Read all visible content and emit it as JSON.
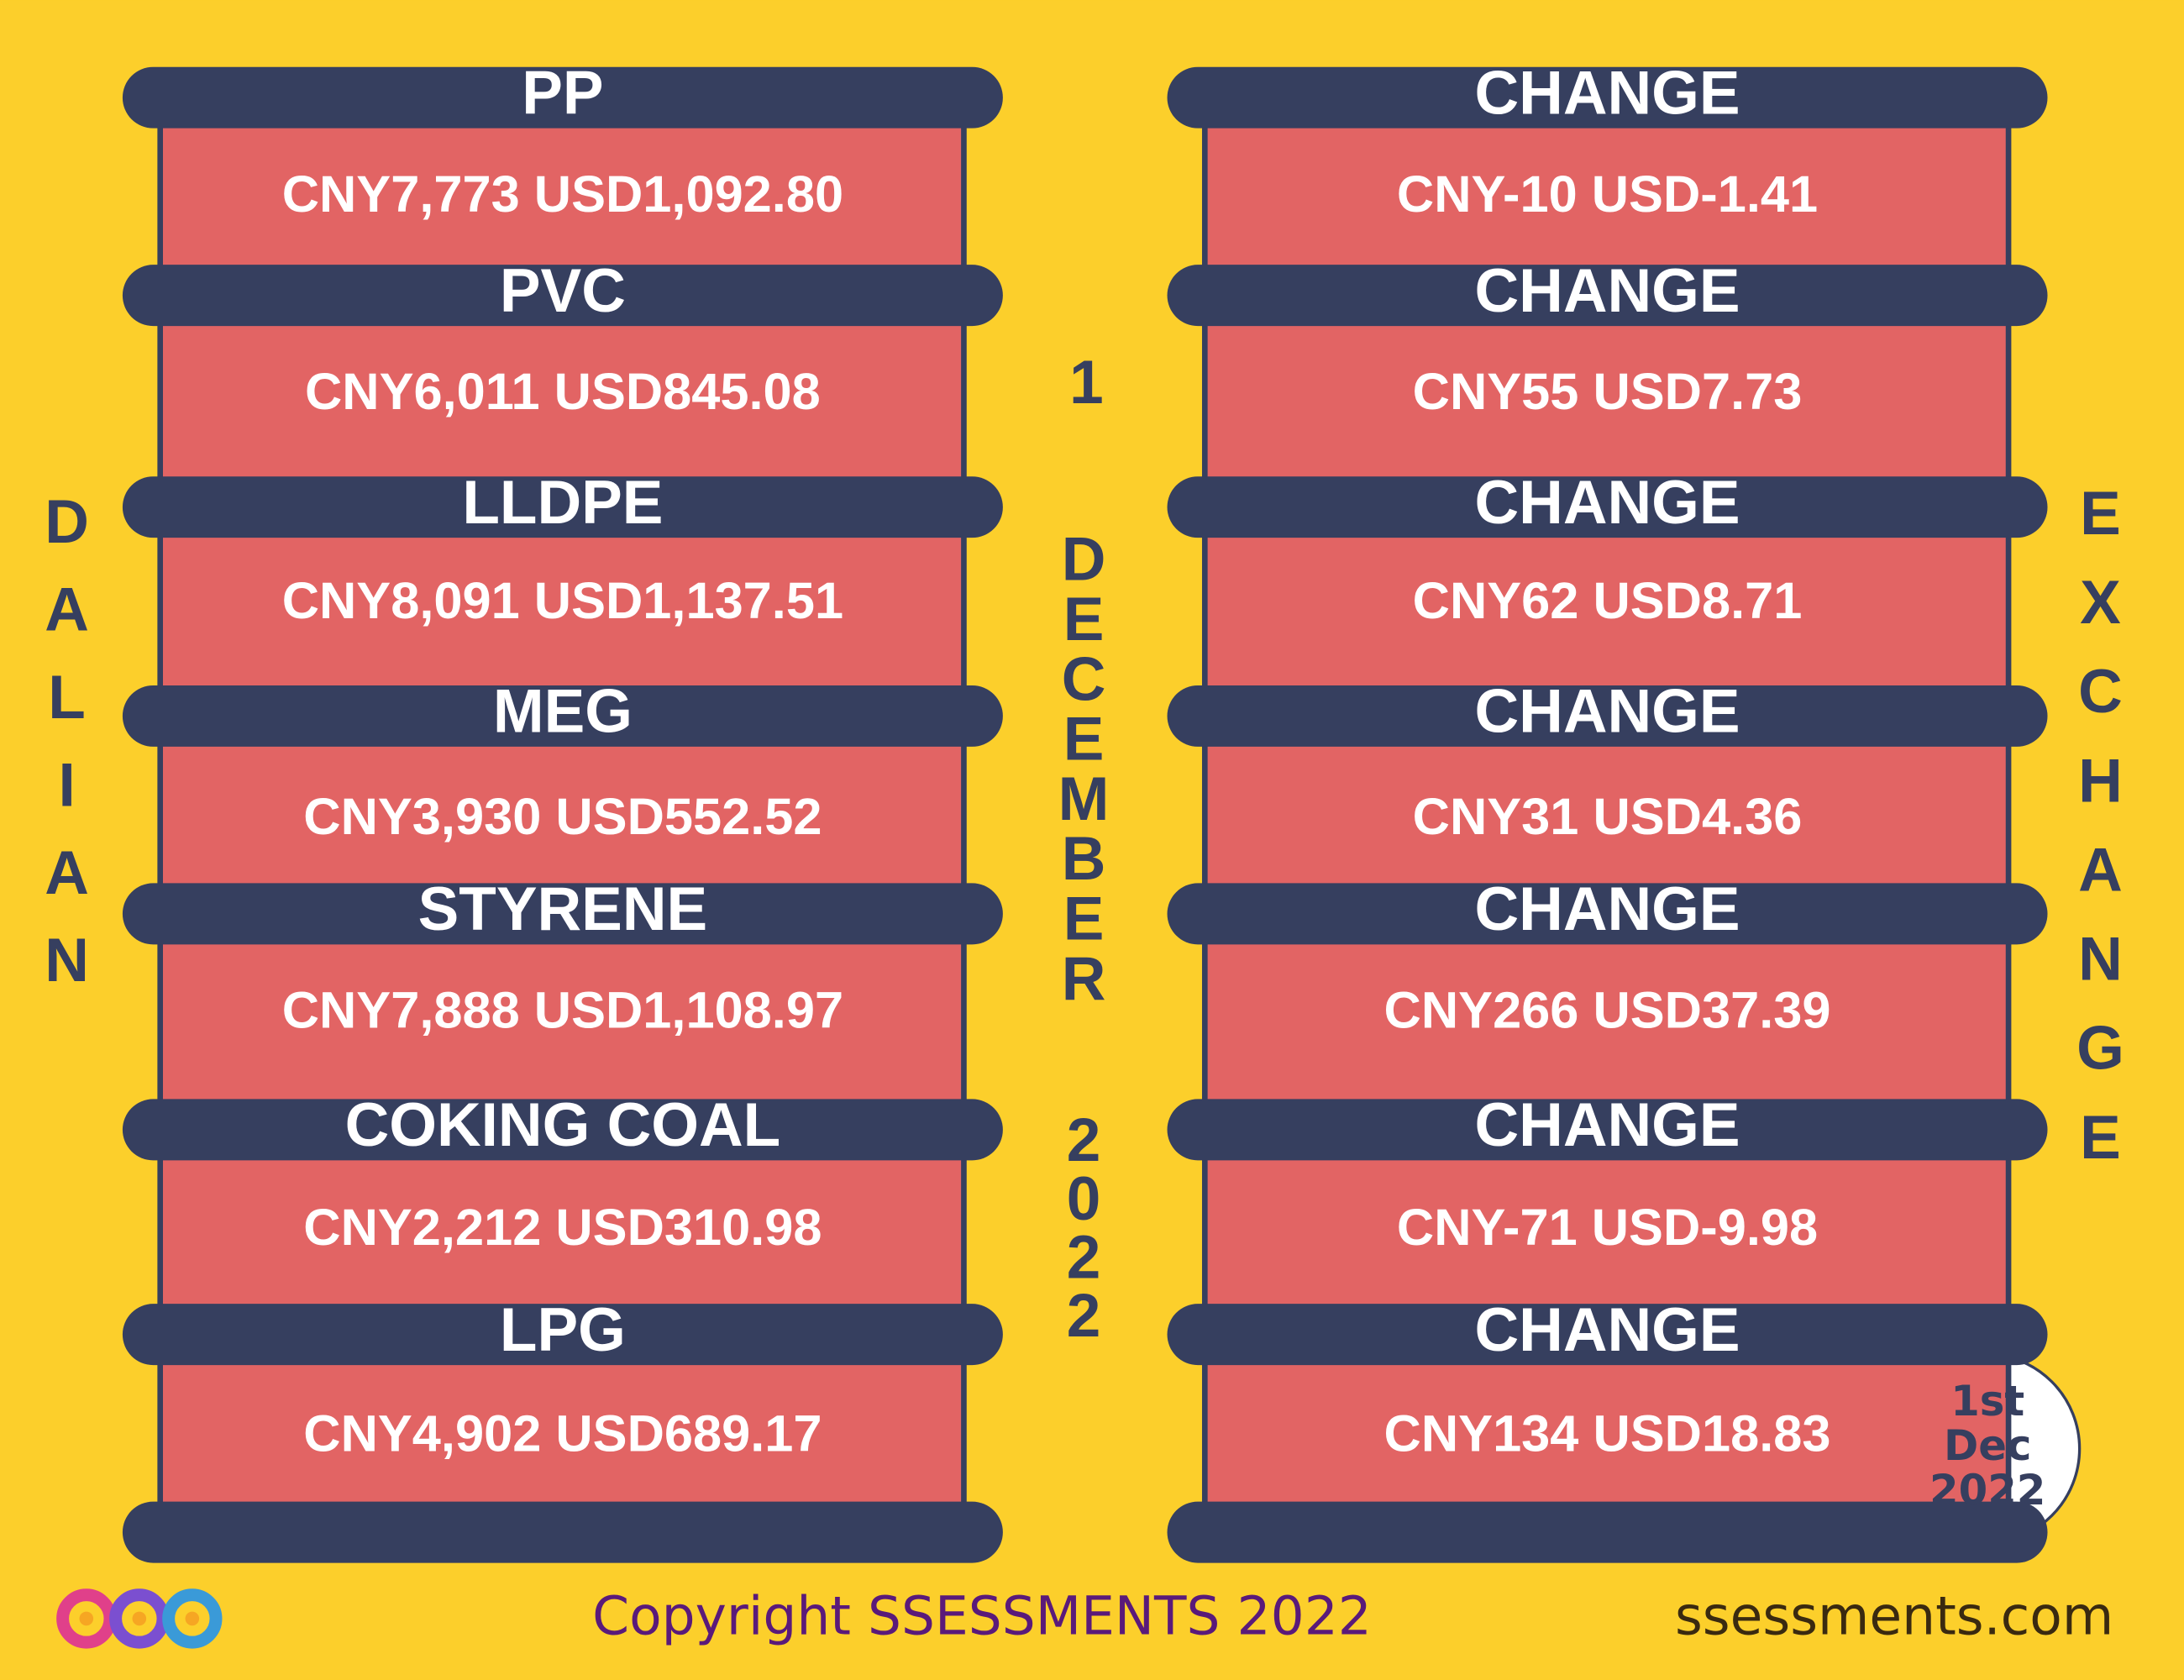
{
  "left_column": {
    "items": [
      {
        "name": "PP",
        "value": "CNY7,773 USD1,092.80"
      },
      {
        "name": "PVC",
        "value": "CNY6,011 USD845.08"
      },
      {
        "name": "LLDPE",
        "value": "CNY8,091 USD1,137.51"
      },
      {
        "name": "MEG",
        "value": "CNY3,930 USD552.52"
      },
      {
        "name": "STYRENE",
        "value": "CNY7,888 USD1,108.97"
      },
      {
        "name": "COKING COAL",
        "value": "CNY2,212 USD310.98"
      },
      {
        "name": "LPG",
        "value": "CNY4,902 USD689.17"
      }
    ]
  },
  "right_column": {
    "items": [
      {
        "label": "CHANGE",
        "value": "CNY-10 USD-1.41"
      },
      {
        "label": "CHANGE",
        "value": "CNY55 USD7.73"
      },
      {
        "label": "CHANGE",
        "value": "CNY62 USD8.71"
      },
      {
        "label": "CHANGE",
        "value": "CNY31 USD4.36"
      },
      {
        "label": "CHANGE",
        "value": "CNY266 USD37.39"
      },
      {
        "label": "CHANGE",
        "value": "CNY-71 USD-9.98"
      },
      {
        "label": "CHANGE",
        "value": "CNY134 USD18.83"
      }
    ]
  },
  "side_labels": {
    "left": "DALIAN",
    "center_top": "1",
    "center_middle": "DECEMBER",
    "center_bottom": "2022",
    "right": "EXCHANGE"
  },
  "badge": {
    "lines": [
      "1st",
      "Dec",
      "2022"
    ]
  },
  "footer": {
    "copyright": "Copyright SSESSMENTS 2022",
    "website": "ssessments.com"
  }
}
